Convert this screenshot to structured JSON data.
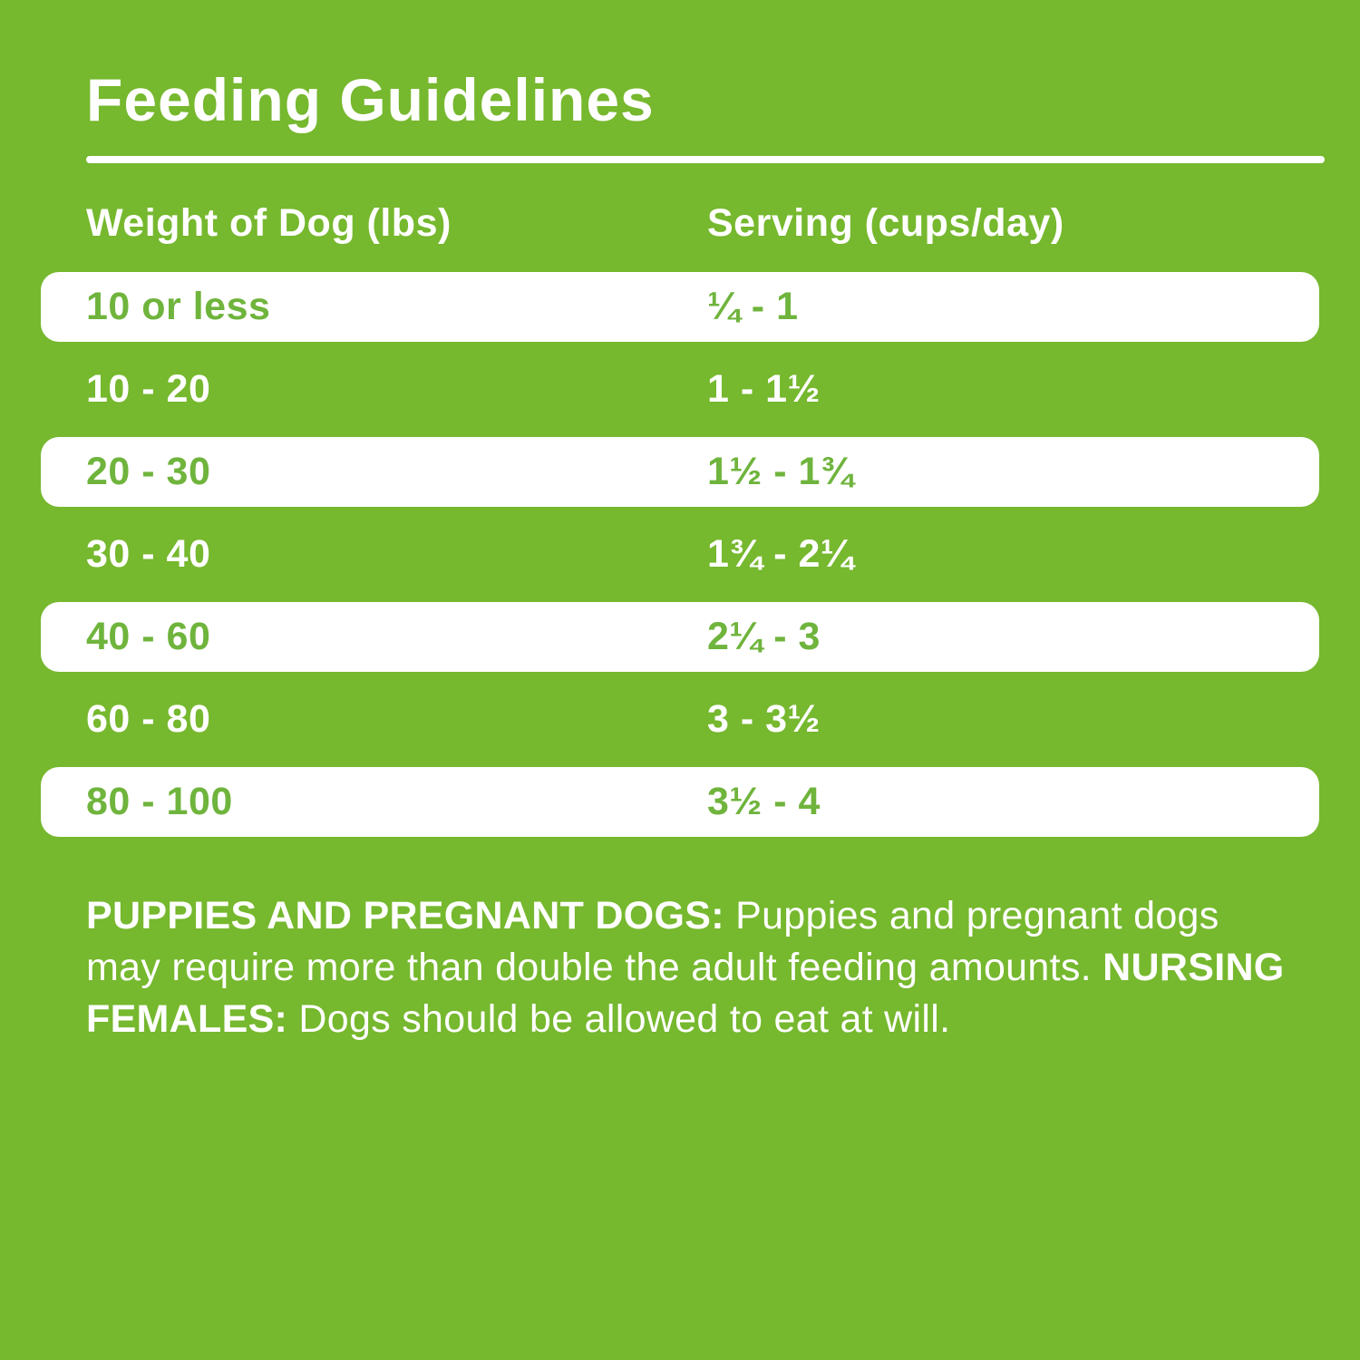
{
  "title": "Feeding Guidelines",
  "table": {
    "columns": [
      "Weight of Dog (lbs)",
      "Serving (cups/day)"
    ],
    "rows": [
      {
        "weight": "10 or less",
        "serving": "¼ - 1",
        "highlighted": true
      },
      {
        "weight": "10 - 20",
        "serving": "1 - 1½",
        "highlighted": false
      },
      {
        "weight": "20 - 30",
        "serving": "1½ - 1¾",
        "highlighted": true
      },
      {
        "weight": "30 - 40",
        "serving": "1¾ - 2¼",
        "highlighted": false
      },
      {
        "weight": "40 - 60",
        "serving": "2¼ - 3",
        "highlighted": true
      },
      {
        "weight": "60 - 80",
        "serving": "3 - 3½",
        "highlighted": false
      },
      {
        "weight": "80 - 100",
        "serving": "3½ - 4",
        "highlighted": true
      }
    ]
  },
  "note": {
    "segments": [
      {
        "text": "PUPPIES AND PREGNANT DOGS:",
        "bold": true
      },
      {
        "text": " Puppies and pregnant dogs may require more than double the adult feeding amounts. ",
        "bold": false
      },
      {
        "text": "NURSING FEMALES:",
        "bold": true
      },
      {
        "text": " Dogs should be allowed to eat at will.",
        "bold": false
      }
    ]
  },
  "colors": {
    "background_green": "#76b82e",
    "row_text_green": "#6fb43c",
    "text_white": "#ffffff"
  }
}
